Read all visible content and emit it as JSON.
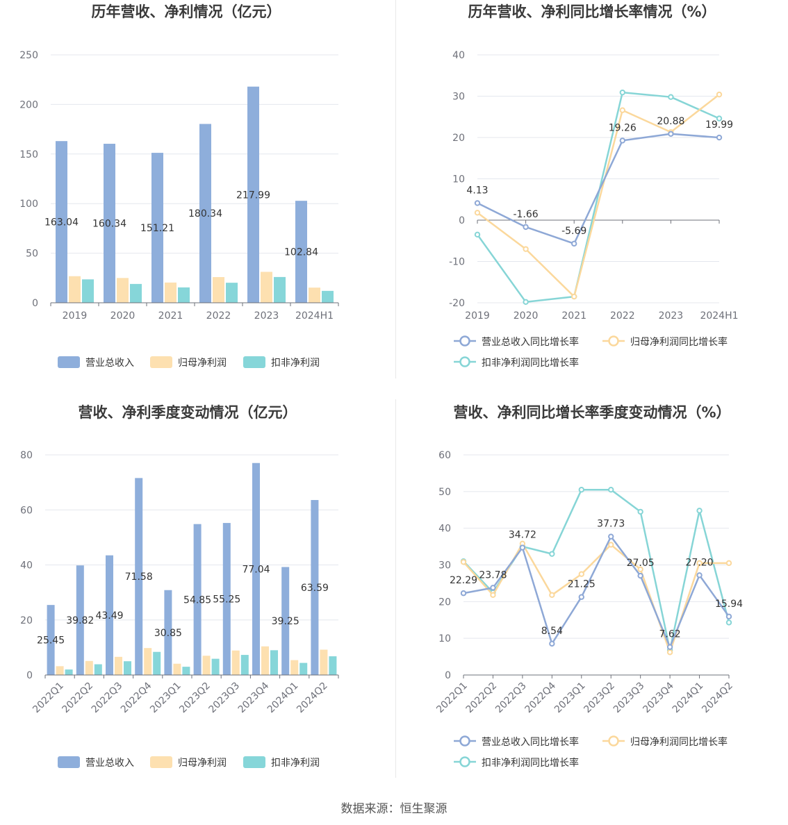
{
  "source_text": "数据来源：恒生聚源",
  "colors": {
    "revenue": "#8eaedb",
    "net_profit": "#fde0b0",
    "deducted": "#86d6d9",
    "rev_line": "#8ea8d6",
    "np_line": "#fbd89c",
    "ded_line": "#86d5d6",
    "grid": "#e4e7ee",
    "axis": "#6e7079"
  },
  "chart_data": [
    {
      "id": "annual-bar",
      "type": "bar",
      "title": "历年营收、净利情况（亿元）",
      "categories": [
        "2019",
        "2020",
        "2021",
        "2022",
        "2023",
        "2024H1"
      ],
      "ylim": [
        0,
        250
      ],
      "yticks": [
        0,
        50,
        100,
        150,
        200,
        250
      ],
      "grid": true,
      "legend_position": "bottom",
      "series": [
        {
          "name": "营业总收入",
          "values": [
            163.04,
            160.34,
            151.21,
            180.34,
            217.99,
            102.84
          ],
          "labels": [
            "163.04",
            "160.34",
            "151.21",
            "180.34",
            "217.99",
            "102.84"
          ]
        },
        {
          "name": "归母净利润",
          "values": [
            26.8,
            25.0,
            20.4,
            25.9,
            31.2,
            15.3
          ]
        },
        {
          "name": "扣非净利润",
          "values": [
            23.6,
            19.0,
            15.5,
            20.2,
            26.0,
            12.0
          ]
        }
      ]
    },
    {
      "id": "annual-line",
      "type": "line",
      "title": "历年营收、净利同比增长率情况（%）",
      "categories": [
        "2019",
        "2020",
        "2021",
        "2022",
        "2023",
        "2024H1"
      ],
      "ylim": [
        -20,
        40
      ],
      "yticks": [
        -20,
        -10,
        0,
        10,
        20,
        30,
        40
      ],
      "grid": true,
      "legend_position": "bottom",
      "series": [
        {
          "name": "营业总收入同比增长率",
          "values": [
            4.13,
            -1.66,
            -5.69,
            19.26,
            20.88,
            19.99
          ],
          "labels": [
            "4.13",
            "-1.66",
            "-5.69",
            "19.26",
            "20.88",
            "19.99"
          ]
        },
        {
          "name": "归母净利润同比增长率",
          "values": [
            1.8,
            -7.0,
            -18.5,
            26.6,
            21.3,
            30.4
          ]
        },
        {
          "name": "扣非净利润同比增长率",
          "values": [
            -3.5,
            -19.8,
            -18.5,
            30.9,
            29.8,
            24.6
          ]
        }
      ]
    },
    {
      "id": "quarter-bar",
      "type": "bar",
      "title": "营收、净利季度变动情况（亿元）",
      "categories": [
        "2022Q1",
        "2022Q2",
        "2022Q3",
        "2022Q4",
        "2023Q1",
        "2023Q2",
        "2023Q3",
        "2023Q4",
        "2024Q1",
        "2024Q2"
      ],
      "ylim": [
        0,
        80
      ],
      "yticks": [
        0,
        20,
        40,
        60,
        80
      ],
      "grid": true,
      "legend_position": "bottom",
      "series": [
        {
          "name": "营业总收入",
          "values": [
            25.45,
            39.82,
            43.49,
            71.58,
            30.85,
            54.85,
            55.25,
            77.04,
            39.25,
            63.59
          ],
          "labels": [
            "25.45",
            "39.82",
            "43.49",
            "71.58",
            "30.85",
            "54.85",
            "55.25",
            "77.04",
            "39.25",
            "63.59"
          ]
        },
        {
          "name": "归母净利润",
          "values": [
            3.2,
            5.1,
            6.6,
            9.8,
            4.1,
            7.0,
            8.9,
            10.4,
            5.4,
            9.2
          ]
        },
        {
          "name": "扣非净利润",
          "values": [
            2.0,
            3.9,
            5.0,
            8.4,
            3.0,
            5.9,
            7.3,
            9.0,
            4.4,
            6.8
          ]
        }
      ]
    },
    {
      "id": "quarter-line",
      "type": "line",
      "title": "营收、净利同比增长率季度变动情况（%）",
      "categories": [
        "2022Q1",
        "2022Q2",
        "2022Q3",
        "2022Q4",
        "2023Q1",
        "2023Q2",
        "2023Q3",
        "2023Q4",
        "2024Q1",
        "2024Q2"
      ],
      "ylim": [
        0,
        60
      ],
      "yticks": [
        0,
        10,
        20,
        30,
        40,
        50,
        60
      ],
      "grid": true,
      "legend_position": "bottom",
      "series": [
        {
          "name": "营业总收入同比增长率",
          "values": [
            22.29,
            23.78,
            34.72,
            8.54,
            21.25,
            37.73,
            27.05,
            7.62,
            27.2,
            15.94
          ],
          "labels": [
            "22.29",
            "23.78",
            "34.72",
            "8.54",
            "21.25",
            "37.73",
            "27.05",
            "7.62",
            "27.20",
            "15.94"
          ]
        },
        {
          "name": "归母净利润同比增长率",
          "values": [
            30.8,
            21.8,
            35.8,
            21.8,
            27.5,
            35.5,
            28.8,
            6.2,
            30.5,
            30.5
          ]
        },
        {
          "name": "扣非净利润同比增长率",
          "values": [
            31.0,
            22.5,
            35.0,
            33.0,
            50.5,
            50.5,
            44.5,
            6.8,
            44.8,
            14.3
          ]
        }
      ]
    }
  ]
}
